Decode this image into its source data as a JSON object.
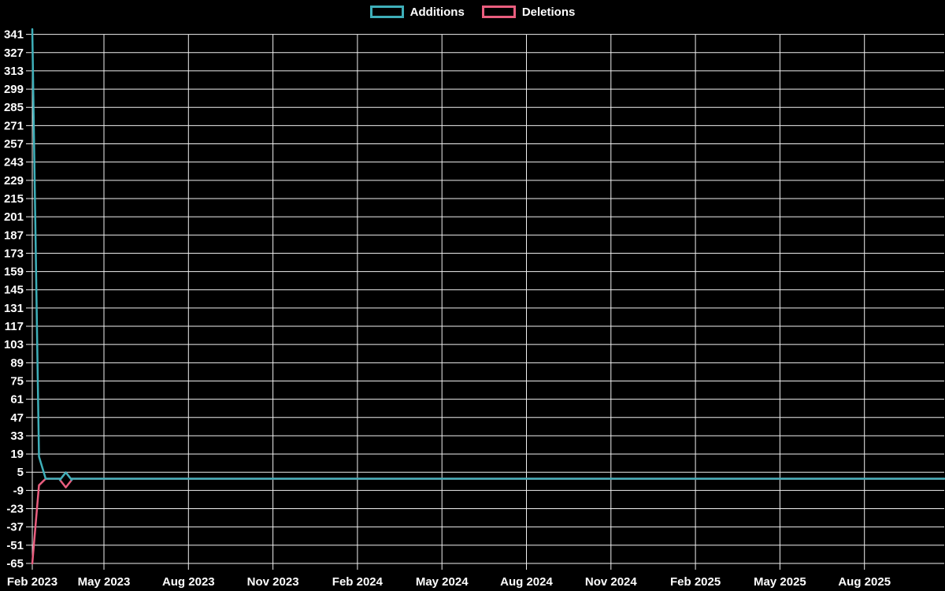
{
  "legend": {
    "position": "top-center",
    "items": [
      {
        "label": "Additions",
        "color": "#3eafb9",
        "swatch": "outlined-box"
      },
      {
        "label": "Deletions",
        "color": "#ea5e7f",
        "swatch": "outlined-box"
      }
    ]
  },
  "chart_data": {
    "type": "line",
    "title": "",
    "background_color": "#000000",
    "grid": true,
    "grid_color": "#f0f0f0",
    "text_color": "#ffffff",
    "legend_position": "top-center",
    "x_tick_labels": [
      "Feb 2023",
      "May 2023",
      "Aug 2023",
      "Nov 2023",
      "Feb 2024",
      "May 2024",
      "Aug 2024",
      "Nov 2024",
      "Feb 2025",
      "May 2025",
      "Aug 2025"
    ],
    "y_tick_labels": [
      341,
      327,
      313,
      299,
      285,
      271,
      257,
      243,
      229,
      215,
      201,
      187,
      173,
      159,
      145,
      131,
      117,
      103,
      89,
      75,
      61,
      47,
      33,
      19,
      5,
      -9,
      -23,
      -37,
      -51,
      -65
    ],
    "ylim": [
      -65,
      345
    ],
    "x_unit": "week",
    "x_weeks_total": 136,
    "x_range_note": "weekly points from early Feb 2023 to ~Sep 2025",
    "series": [
      {
        "name": "Additions",
        "color": "#3eafb9",
        "points": [
          {
            "week": 0,
            "value": 345
          },
          {
            "week": 1,
            "value": 17
          },
          {
            "week": 2,
            "value": 0
          },
          {
            "week": 136,
            "value": 0
          }
        ]
      },
      {
        "name": "Deletions",
        "color": "#ea5e7f",
        "points": [
          {
            "week": 0,
            "value": -65
          },
          {
            "week": 1,
            "value": -5
          },
          {
            "week": 2,
            "value": 0
          },
          {
            "week": 136,
            "value": 0
          }
        ]
      }
    ],
    "highlight_marker": {
      "shape": "diamond",
      "week": 5,
      "value": 0,
      "top_half_color": "#3eafb9",
      "bottom_half_color": "#ea5e7f",
      "fill": "#000000"
    }
  }
}
